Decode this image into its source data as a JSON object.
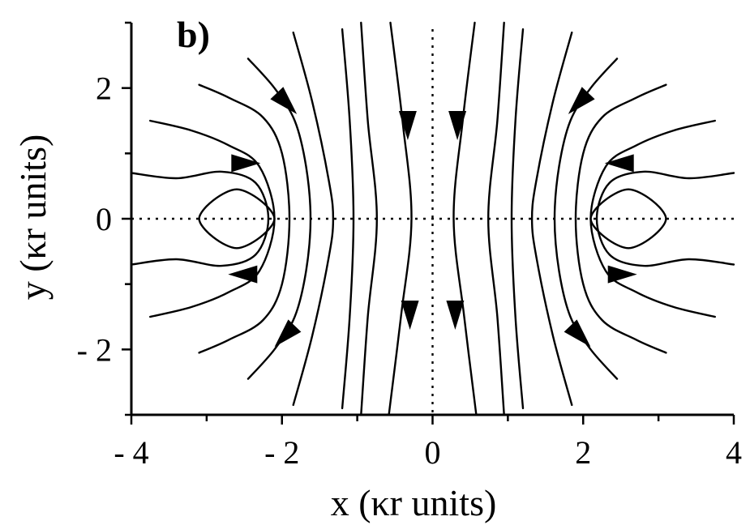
{
  "chart_data": {
    "type": "streamline",
    "panel_label": "b)",
    "xlabel": "x (κr units)",
    "ylabel": "y (κr units)",
    "xlim": [
      -4,
      4
    ],
    "ylim": [
      -3,
      3
    ],
    "x_ticks": [
      -4,
      -2,
      0,
      2,
      4
    ],
    "x_tick_labels": [
      "- 4",
      "- 2",
      "0",
      "2",
      "4"
    ],
    "y_ticks": [
      -2,
      0,
      2
    ],
    "y_tick_labels": [
      "- 2",
      "0",
      "2"
    ],
    "zero_lines": {
      "x": 0,
      "y": 0,
      "style": "dotted"
    },
    "streamlines": [
      {
        "points": [
          [
            -0.58,
            -3.0
          ],
          [
            -0.42,
            -1.5
          ],
          [
            -0.28,
            0.0
          ],
          [
            -0.4,
            1.5
          ],
          [
            -0.56,
            3.0
          ]
        ],
        "arrows": [
          {
            "at": [
              -0.3,
              -1.45
            ],
            "dir": "down"
          },
          {
            "at": [
              -0.33,
              1.45
            ],
            "dir": "down"
          }
        ]
      },
      {
        "points": [
          [
            0.58,
            -3.0
          ],
          [
            0.42,
            -1.5
          ],
          [
            0.28,
            0.0
          ],
          [
            0.4,
            1.5
          ],
          [
            0.56,
            3.0
          ]
        ],
        "arrows": [
          {
            "at": [
              0.3,
              -1.45
            ],
            "dir": "down"
          },
          {
            "at": [
              0.33,
              1.45
            ],
            "dir": "down"
          }
        ]
      },
      {
        "points": [
          [
            -0.95,
            -3.0
          ],
          [
            -0.86,
            -1.5
          ],
          [
            -0.74,
            0.0
          ],
          [
            -0.86,
            1.5
          ],
          [
            -0.95,
            3.0
          ]
        ],
        "arrows": []
      },
      {
        "points": [
          [
            0.95,
            -3.0
          ],
          [
            0.86,
            -1.5
          ],
          [
            0.74,
            0.0
          ],
          [
            0.86,
            1.5
          ],
          [
            0.95,
            3.0
          ]
        ],
        "arrows": []
      },
      {
        "points": [
          [
            -1.2,
            -2.9
          ],
          [
            -1.1,
            -1.5
          ],
          [
            -1.05,
            0.0
          ],
          [
            -1.1,
            1.5
          ],
          [
            -1.2,
            2.9
          ]
        ],
        "arrows": []
      },
      {
        "points": [
          [
            1.2,
            -2.9
          ],
          [
            1.1,
            -1.5
          ],
          [
            1.05,
            0.0
          ],
          [
            1.1,
            1.5
          ],
          [
            1.2,
            2.9
          ]
        ],
        "arrows": []
      },
      {
        "points": [
          [
            -1.85,
            -2.85
          ],
          [
            -1.6,
            -1.8
          ],
          [
            -1.38,
            -0.6
          ],
          [
            -1.32,
            0.0
          ],
          [
            -1.38,
            0.6
          ],
          [
            -1.6,
            1.8
          ],
          [
            -1.85,
            2.85
          ]
        ],
        "arrows": []
      },
      {
        "points": [
          [
            1.85,
            -2.85
          ],
          [
            1.6,
            -1.8
          ],
          [
            1.38,
            -0.6
          ],
          [
            1.32,
            0.0
          ],
          [
            1.38,
            0.6
          ],
          [
            1.6,
            1.8
          ],
          [
            1.85,
            2.85
          ]
        ],
        "arrows": []
      },
      {
        "points": [
          [
            -2.45,
            -2.45
          ],
          [
            -2.1,
            -2.0
          ],
          [
            -1.83,
            -1.5
          ],
          [
            -1.68,
            -0.8
          ],
          [
            -1.62,
            0.0
          ],
          [
            -1.68,
            0.8
          ],
          [
            -1.83,
            1.5
          ],
          [
            -2.1,
            2.0
          ],
          [
            -2.45,
            2.45
          ]
        ],
        "arrows": [
          {
            "at": [
              -1.95,
              -1.78
            ],
            "dir": "away"
          },
          {
            "at": [
              -1.95,
              1.78
            ],
            "dir": "toward"
          }
        ]
      },
      {
        "points": [
          [
            2.45,
            -2.45
          ],
          [
            2.1,
            -2.0
          ],
          [
            1.83,
            -1.5
          ],
          [
            1.68,
            -0.8
          ],
          [
            1.62,
            0.0
          ],
          [
            1.68,
            0.8
          ],
          [
            1.83,
            1.5
          ],
          [
            2.1,
            2.0
          ],
          [
            2.45,
            2.45
          ]
        ],
        "arrows": [
          {
            "at": [
              1.95,
              -1.78
            ],
            "dir": "away"
          },
          {
            "at": [
              1.95,
              1.78
            ],
            "dir": "toward"
          }
        ]
      },
      {
        "points": [
          [
            -3.1,
            -2.05
          ],
          [
            -2.7,
            -1.85
          ],
          [
            -2.25,
            -1.55
          ],
          [
            -2.0,
            -1.0
          ],
          [
            -1.9,
            0.0
          ],
          [
            -2.0,
            1.0
          ],
          [
            -2.25,
            1.55
          ],
          [
            -2.7,
            1.85
          ],
          [
            -3.1,
            2.05
          ]
        ],
        "arrows": []
      },
      {
        "points": [
          [
            3.1,
            -2.05
          ],
          [
            2.7,
            -1.85
          ],
          [
            2.25,
            -1.55
          ],
          [
            2.0,
            -1.0
          ],
          [
            1.9,
            0.0
          ],
          [
            2.0,
            1.0
          ],
          [
            2.25,
            1.55
          ],
          [
            2.7,
            1.85
          ],
          [
            3.1,
            2.05
          ]
        ],
        "arrows": []
      },
      {
        "points": [
          [
            -3.75,
            -1.5
          ],
          [
            -3.2,
            -1.35
          ],
          [
            -2.7,
            -1.12
          ],
          [
            -2.3,
            -0.8
          ],
          [
            -2.1,
            0.0
          ],
          [
            -2.3,
            0.8
          ],
          [
            -2.7,
            1.12
          ],
          [
            -3.2,
            1.35
          ],
          [
            -3.75,
            1.5
          ]
        ],
        "arrows": []
      },
      {
        "points": [
          [
            3.75,
            -1.5
          ],
          [
            3.2,
            -1.35
          ],
          [
            2.7,
            -1.12
          ],
          [
            2.3,
            -0.8
          ],
          [
            2.1,
            0.0
          ],
          [
            2.3,
            0.8
          ],
          [
            2.7,
            1.12
          ],
          [
            3.2,
            1.35
          ],
          [
            3.75,
            1.5
          ]
        ],
        "arrows": []
      },
      {
        "points": [
          [
            -4.0,
            -0.7
          ],
          [
            -3.4,
            -0.62
          ],
          [
            -2.8,
            -0.72
          ],
          [
            -2.35,
            -0.55
          ],
          [
            -2.18,
            0.0
          ],
          [
            -2.35,
            0.55
          ],
          [
            -2.8,
            0.72
          ],
          [
            -3.4,
            0.62
          ],
          [
            -4.0,
            0.7
          ]
        ],
        "arrows": [
          {
            "at": [
              -2.5,
              0.85
            ],
            "dir": "right"
          },
          {
            "at": [
              -2.5,
              -0.85
            ],
            "dir": "left"
          }
        ]
      },
      {
        "points": [
          [
            4.0,
            -0.7
          ],
          [
            3.4,
            -0.62
          ],
          [
            2.8,
            -0.72
          ],
          [
            2.35,
            -0.55
          ],
          [
            2.18,
            0.0
          ],
          [
            2.35,
            0.55
          ],
          [
            2.8,
            0.72
          ],
          [
            3.4,
            0.62
          ],
          [
            4.0,
            0.7
          ]
        ],
        "arrows": [
          {
            "at": [
              2.5,
              0.85
            ],
            "dir": "left"
          },
          {
            "at": [
              2.5,
              -0.85
            ],
            "dir": "right"
          }
        ]
      },
      {
        "points": [
          [
            -3.1,
            0.0
          ],
          [
            -2.6,
            0.45
          ],
          [
            -2.1,
            0.0
          ],
          [
            -2.6,
            -0.45
          ],
          [
            -3.1,
            0.0
          ]
        ],
        "closed": true,
        "arrows": []
      },
      {
        "points": [
          [
            3.1,
            0.0
          ],
          [
            2.6,
            0.45
          ],
          [
            2.1,
            0.0
          ],
          [
            2.6,
            -0.45
          ],
          [
            3.1,
            0.0
          ]
        ],
        "closed": true,
        "arrows": []
      }
    ]
  }
}
